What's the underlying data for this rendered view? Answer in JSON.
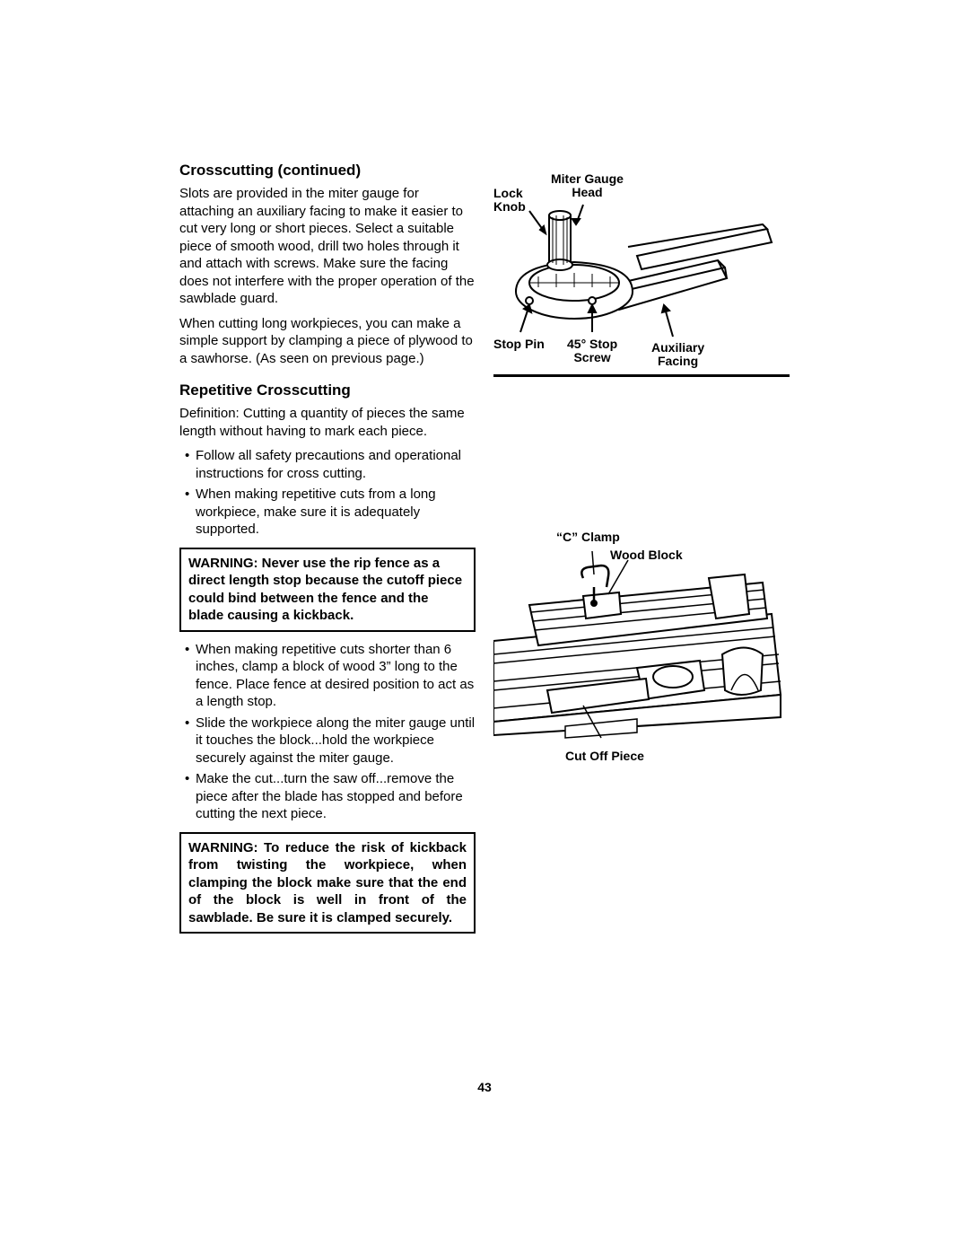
{
  "section1": {
    "title": "Crosscutting (continued)",
    "p1": "Slots are provided in the miter gauge for attaching an auxiliary facing to make it easier to cut very long or short pieces. Select a suitable piece of smooth wood, drill two holes through it and attach with screws. Make sure the facing does not interfere with the proper operation of the sawblade guard.",
    "p2": "When cutting long workpieces, you can make a simple support by clamping a piece of plywood to a sawhorse. (As seen on previous page.)"
  },
  "section2": {
    "title": "Repetitive Crosscutting",
    "p1": "Definition: Cutting a quantity of pieces the same length without having to mark each piece.",
    "bullets1": [
      "Follow all safety precautions and operational instructions for cross cutting.",
      "When making repetitive cuts from a long workpiece, make sure it is adequately supported."
    ],
    "warning1": "WARNING: Never use the rip fence as a direct length stop because the cutoff piece could bind between the fence and the blade causing a kickback.",
    "bullets2": [
      "When making repetitive cuts shorter than 6 inches, clamp a block of wood 3” long to the fence. Place fence at desired position to act as a length stop.",
      "Slide the workpiece along the miter gauge until it touches the block...hold the workpiece securely against the miter gauge.",
      "Make the cut...turn the saw off...remove the piece after the blade has stopped and before cutting the next piece."
    ],
    "warning2": "WARNING: To reduce the risk of kickback from twisting the workpiece, when clamping the block make sure that the end of the block is well in front of the sawblade. Be sure it is clamped securely."
  },
  "figure1": {
    "labels": {
      "lock_knob": "Lock Knob",
      "miter_gauge_head": "Miter Gauge Head",
      "stop_pin": "Stop Pin",
      "stop_screw": "45° Stop Screw",
      "auxiliary_facing": "Auxiliary Facing"
    }
  },
  "figure2": {
    "labels": {
      "c_clamp": "“C” Clamp",
      "wood_block": "Wood Block",
      "cut_off_piece": "Cut Off Piece"
    }
  },
  "pageNumber": "43",
  "colors": {
    "text": "#000000",
    "background": "#ffffff",
    "stroke": "#000000"
  },
  "fonts": {
    "body": 15,
    "title": 17,
    "label": 14
  }
}
